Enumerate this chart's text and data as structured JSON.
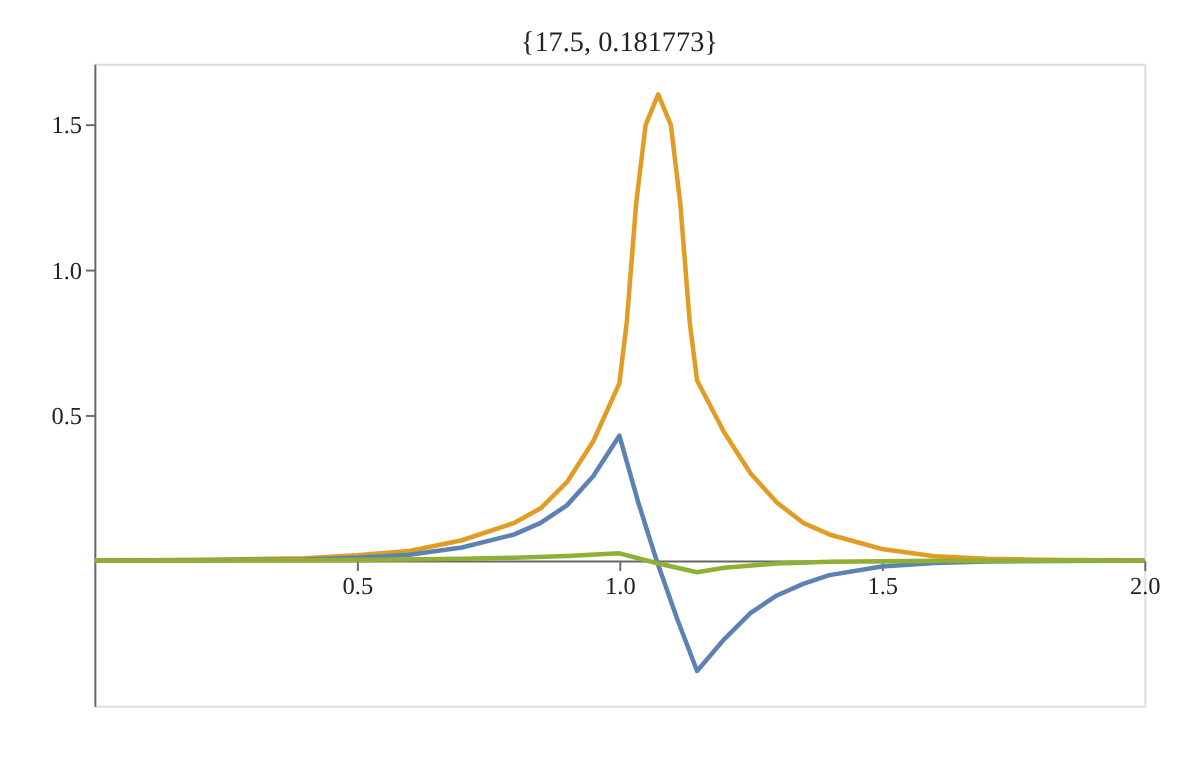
{
  "chart_data": {
    "type": "line",
    "title": "{17.5, 0.181773}",
    "xlim": [
      0,
      2
    ],
    "ylim": [
      -0.5,
      1.71
    ],
    "xticks": [
      0.5,
      {
        "value": 1,
        "label": "1.0"
      },
      1.5,
      {
        "value": 2,
        "label": "2.0"
      }
    ],
    "yticks": [
      0.5,
      {
        "value": 1,
        "label": "1.0"
      },
      1.5
    ],
    "grid": false,
    "legend": false,
    "line_style": "solid",
    "marker": "none",
    "series": [
      {
        "color": "#e19c24",
        "x": [
          0,
          0.2,
          0.4,
          0.5,
          0.6,
          0.7,
          0.8,
          0.85,
          0.9,
          0.95,
          1.0,
          1.014,
          1.032,
          1.05,
          1.074,
          1.098,
          1.116,
          1.134,
          1.148,
          1.2,
          1.25,
          1.3,
          1.35,
          1.4,
          1.5,
          1.6,
          1.7,
          1.8,
          2.0
        ],
        "values": [
          0.0,
          0.002,
          0.008,
          0.018,
          0.033,
          0.07,
          0.13,
          0.18,
          0.27,
          0.41,
          0.61,
          0.82,
          1.23,
          1.5,
          1.605,
          1.5,
          1.23,
          0.82,
          0.62,
          0.44,
          0.3,
          0.2,
          0.13,
          0.09,
          0.04,
          0.015,
          0.006,
          0.003,
          0.0
        ]
      },
      {
        "color": "#5e81b5",
        "x": [
          0,
          0.4,
          0.5,
          0.6,
          0.7,
          0.8,
          0.85,
          0.9,
          0.95,
          1.0,
          1.036,
          1.071,
          1.11,
          1.148,
          1.2,
          1.25,
          1.3,
          1.35,
          1.4,
          1.5,
          1.6,
          1.7,
          2.0
        ],
        "values": [
          0,
          0.004,
          0.01,
          0.02,
          0.045,
          0.09,
          0.13,
          0.19,
          0.29,
          0.43,
          0.2,
          0,
          -0.2,
          -0.38,
          -0.27,
          -0.18,
          -0.12,
          -0.08,
          -0.05,
          -0.02,
          -0.008,
          -0.003,
          0
        ]
      },
      {
        "color": "#8fb032",
        "x": [
          0,
          0.5,
          0.7,
          0.8,
          0.9,
          1.0,
          1.074,
          1.148,
          1.2,
          1.3,
          1.4,
          1.6,
          2.0
        ],
        "values": [
          0,
          0.002,
          0.006,
          0.01,
          0.016,
          0.025,
          -0.01,
          -0.04,
          -0.025,
          -0.01,
          -0.004,
          -0.001,
          0
        ]
      }
    ]
  }
}
